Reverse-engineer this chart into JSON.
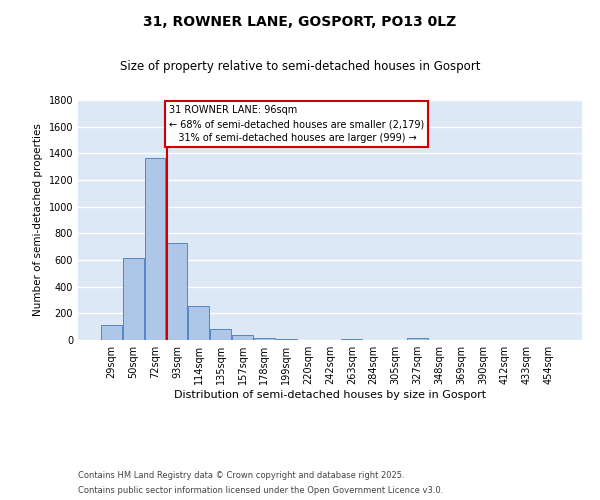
{
  "title": "31, ROWNER LANE, GOSPORT, PO13 0LZ",
  "subtitle": "Size of property relative to semi-detached houses in Gosport",
  "xlabel": "Distribution of semi-detached houses by size in Gosport",
  "ylabel": "Number of semi-detached properties",
  "footnote1": "Contains HM Land Registry data © Crown copyright and database right 2025.",
  "footnote2": "Contains public sector information licensed under the Open Government Licence v3.0.",
  "bar_labels": [
    "29sqm",
    "50sqm",
    "72sqm",
    "93sqm",
    "114sqm",
    "135sqm",
    "157sqm",
    "178sqm",
    "199sqm",
    "220sqm",
    "242sqm",
    "263sqm",
    "284sqm",
    "305sqm",
    "327sqm",
    "348sqm",
    "369sqm",
    "390sqm",
    "412sqm",
    "433sqm",
    "454sqm"
  ],
  "bar_values": [
    115,
    615,
    1365,
    725,
    255,
    80,
    35,
    15,
    8,
    0,
    0,
    8,
    0,
    0,
    12,
    0,
    0,
    0,
    0,
    0,
    0
  ],
  "bar_color": "#aec6e8",
  "bar_edgecolor": "#5585c5",
  "property_line_color": "#cc0000",
  "annotation_text": "31 ROWNER LANE: 96sqm\n← 68% of semi-detached houses are smaller (2,179)\n   31% of semi-detached houses are larger (999) →",
  "annotation_box_color": "#cc0000",
  "ylim": [
    0,
    1800
  ],
  "yticks": [
    0,
    200,
    400,
    600,
    800,
    1000,
    1200,
    1400,
    1600,
    1800
  ],
  "background_color": "#dce8f5",
  "grid_color": "#ffffff",
  "fig_background": "#ffffff"
}
